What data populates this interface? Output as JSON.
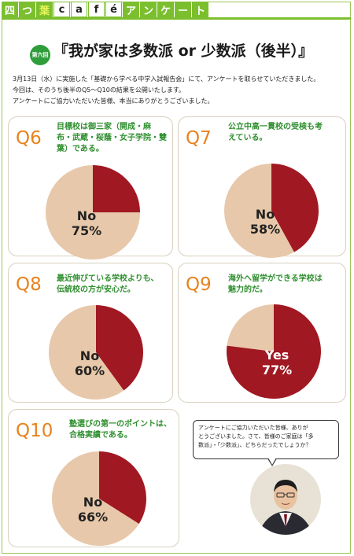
{
  "banner": {
    "chars": [
      "四",
      "つ",
      "葉",
      "c",
      "a",
      "f",
      "é",
      "ア",
      "ン",
      "ケ",
      "ー",
      "ト"
    ]
  },
  "header": {
    "episode_badge": "第六回",
    "title": "『我が家は多数派 or 少数派（後半）』"
  },
  "intro": {
    "lines": [
      "3月13日（水）に実施した「基礎から学べる中学入試報告会」にて、アンケートを取らせていただきました。",
      "今回は、そのうち後半のQ5～Q10の結果を公開いたします。",
      "アンケートにご協力いただいた皆様、本当にありがとうございました。"
    ]
  },
  "colors": {
    "yes": "#a01822",
    "no": "#e8c8aa",
    "accent": "#e8821e",
    "question_text": "#2f8f2f",
    "banner": "#7cbf2e"
  },
  "chart_data": [
    {
      "type": "pie",
      "label": "Q6",
      "question": [
        "目標校は御三家（開成・麻",
        "布・武蔵・桜蔭・女子学院・雙",
        "葉）である。"
      ],
      "slices": [
        {
          "name": "Yes",
          "value": 25
        },
        {
          "name": "No",
          "value": 75
        }
      ],
      "data_labels": [
        "No",
        "75%"
      ]
    },
    {
      "type": "pie",
      "label": "Q7",
      "question": [
        "公立中高一貫校の受検も考",
        "えている。"
      ],
      "slices": [
        {
          "name": "Yes",
          "value": 42
        },
        {
          "name": "No",
          "value": 58
        }
      ],
      "data_labels": [
        "No",
        "58%"
      ]
    },
    {
      "type": "pie",
      "label": "Q8",
      "question": [
        "最近伸びている学校よりも、",
        "伝統校の方が安心だ。"
      ],
      "slices": [
        {
          "name": "Yes",
          "value": 40
        },
        {
          "name": "No",
          "value": 60
        }
      ],
      "data_labels": [
        "No",
        "60%"
      ]
    },
    {
      "type": "pie",
      "label": "Q9",
      "question": [
        "海外へ留学ができる学校は",
        "魅力的だ。"
      ],
      "slices": [
        {
          "name": "Yes",
          "value": 77
        },
        {
          "name": "No",
          "value": 23
        }
      ],
      "data_labels": [
        "Yes",
        "77%"
      ]
    },
    {
      "type": "pie",
      "label": "Q10",
      "question": [
        "塾選びの第一のポイントは、",
        "合格実績である。"
      ],
      "slices": [
        {
          "name": "Yes",
          "value": 34
        },
        {
          "name": "No",
          "value": 66
        }
      ],
      "data_labels": [
        "No",
        "66%"
      ]
    }
  ],
  "speech": {
    "lines": [
      "アンケートにご協力いただいた皆様、ありが",
      "とうございました。さて、皆様のご家庭は「多",
      "数派」・「少数派」、どちらだったでしょうか？"
    ]
  }
}
